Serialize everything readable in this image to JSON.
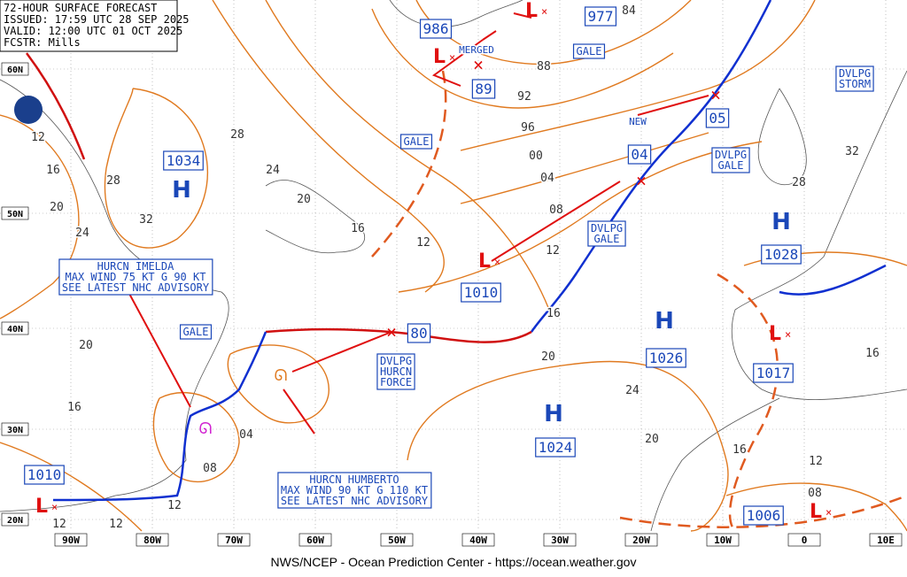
{
  "header": {
    "title": "72-HOUR SURFACE FORECAST",
    "issued": "ISSUED: 17:59 UTC 28 SEP 2025",
    "valid": "VALID:  12:00 UTC 01 OCT 2025",
    "forecaster": "FCSTR:  Mills"
  },
  "centers": [
    {
      "symbol": "H",
      "pressure": "1034"
    },
    {
      "symbol": "H",
      "pressure": "1026"
    },
    {
      "symbol": "H",
      "pressure": "1024"
    },
    {
      "symbol": "H",
      "pressure": "1028"
    },
    {
      "symbol": "L",
      "pressure": "986"
    },
    {
      "symbol": "L",
      "pressure": "977"
    },
    {
      "symbol": "L",
      "pressure": "1010"
    },
    {
      "symbol": "L",
      "pressure": "1017"
    },
    {
      "symbol": "L",
      "pressure": "1006"
    },
    {
      "symbol": "L",
      "pressure": "1010"
    }
  ],
  "forecast_positions": [
    "89",
    "04",
    "05",
    "80"
  ],
  "isobar_labels": [
    "12",
    "16",
    "20",
    "24",
    "28",
    "32",
    "28",
    "24",
    "20",
    "16",
    "12",
    "84",
    "88",
    "92",
    "96",
    "00",
    "04",
    "08",
    "12",
    "16",
    "20",
    "24",
    "20",
    "16",
    "12",
    "08",
    "16",
    "32",
    "28",
    "20",
    "16",
    "12",
    "12",
    "12",
    "04",
    "08"
  ],
  "annotations": [
    {
      "lines": [
        "GALE"
      ]
    },
    {
      "lines": [
        "GALE"
      ]
    },
    {
      "lines": [
        "GALE"
      ]
    },
    {
      "lines": [
        "DVLPG",
        "GALE"
      ]
    },
    {
      "lines": [
        "DVLPG",
        "GALE"
      ]
    },
    {
      "lines": [
        "DVLPG",
        "STORM"
      ]
    },
    {
      "lines": [
        "DVLPG",
        "HURCN",
        "FORCE"
      ]
    },
    {
      "lines": [
        "HURCN IMELDA",
        "MAX WIND 75 KT G 90 KT",
        "SEE LATEST NHC ADVISORY"
      ]
    },
    {
      "lines": [
        "HURCN HUMBERTO",
        "MAX WIND 90 KT G 110 KT",
        "SEE LATEST NHC ADVISORY"
      ]
    }
  ],
  "notes": [
    "MERGED",
    "NEW"
  ],
  "lat_labels": [
    "60N",
    "50N",
    "40N",
    "30N",
    "20N"
  ],
  "lon_labels": [
    "90W",
    "80W",
    "70W",
    "60W",
    "50W",
    "40W",
    "30W",
    "20W",
    "10W",
    "0",
    "10E"
  ],
  "footer": "NWS/NCEP - Ocean Prediction Center - https://ocean.weather.gov"
}
